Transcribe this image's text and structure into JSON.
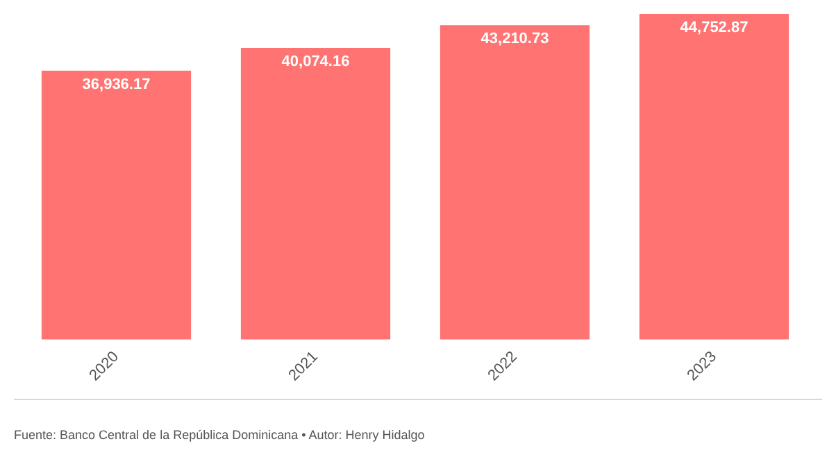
{
  "chart_data": {
    "type": "bar",
    "categories": [
      "2020",
      "2021",
      "2022",
      "2023"
    ],
    "values": [
      36936.17,
      40074.16,
      43210.73,
      44752.87
    ],
    "color": "#ff7373",
    "data_labels": true,
    "value_labels": [
      "36,936.17",
      "40,074.16",
      "43,210.73",
      "44,752.87"
    ],
    "grid": false,
    "legend": false,
    "annotations": [
      "Fuente: Banco Central de la República Dominicana • Autor: Henry Hidalgo"
    ]
  }
}
